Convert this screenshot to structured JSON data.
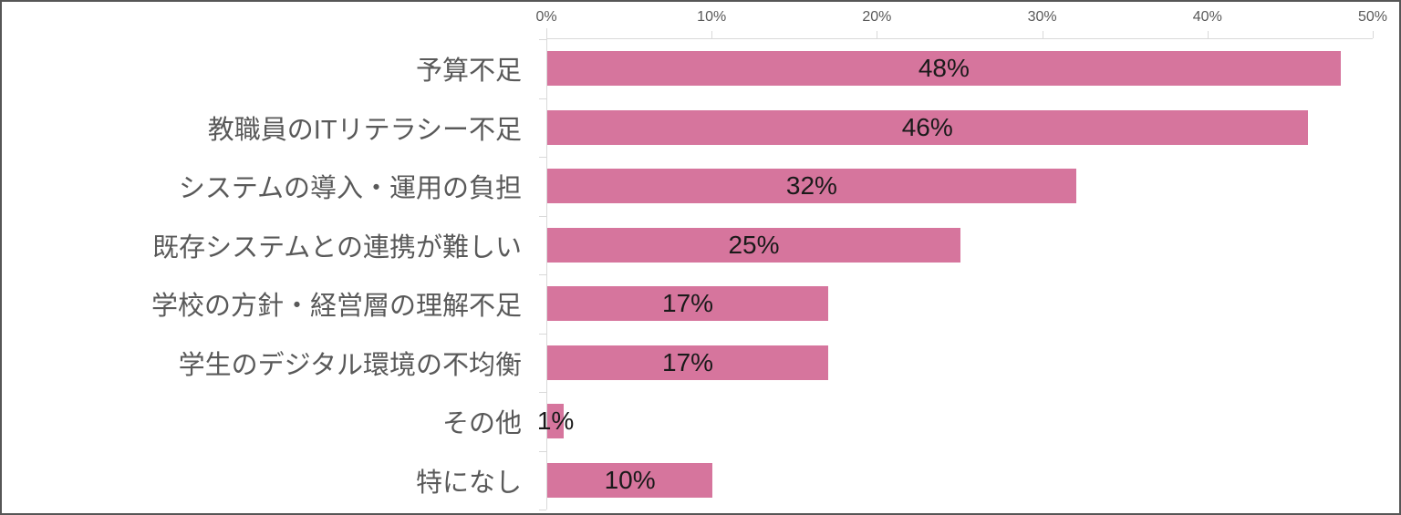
{
  "chart_data": {
    "type": "bar",
    "orientation": "horizontal",
    "title": "",
    "categories": [
      "予算不足",
      "教職員のITリテラシー不足",
      "システムの導入・運用の負担",
      "既存システムとの連携が難しい",
      "学校の方針・経営層の理解不足",
      "学生のデジタル環境の不均衡",
      "その他",
      "特になし"
    ],
    "values": [
      48,
      46,
      32,
      25,
      17,
      17,
      1,
      10
    ],
    "value_labels": [
      "48%",
      "46%",
      "32%",
      "25%",
      "17%",
      "17%",
      "1%",
      "10%"
    ],
    "x_axis": {
      "position": "top",
      "min": 0,
      "max": 50,
      "tick_step": 10,
      "ticks": [
        "0%",
        "10%",
        "20%",
        "30%",
        "40%",
        "50%"
      ]
    },
    "grid": false,
    "legend": false,
    "value_label_position": "center-of-bar"
  },
  "colors": {
    "bar": "#d6759d",
    "value_text": "#1a1a1a",
    "category_text": "#595959",
    "axis_text": "#595959",
    "axis_line": "#d9d9d9",
    "frame_border": "#565656",
    "background": "#ffffff"
  }
}
